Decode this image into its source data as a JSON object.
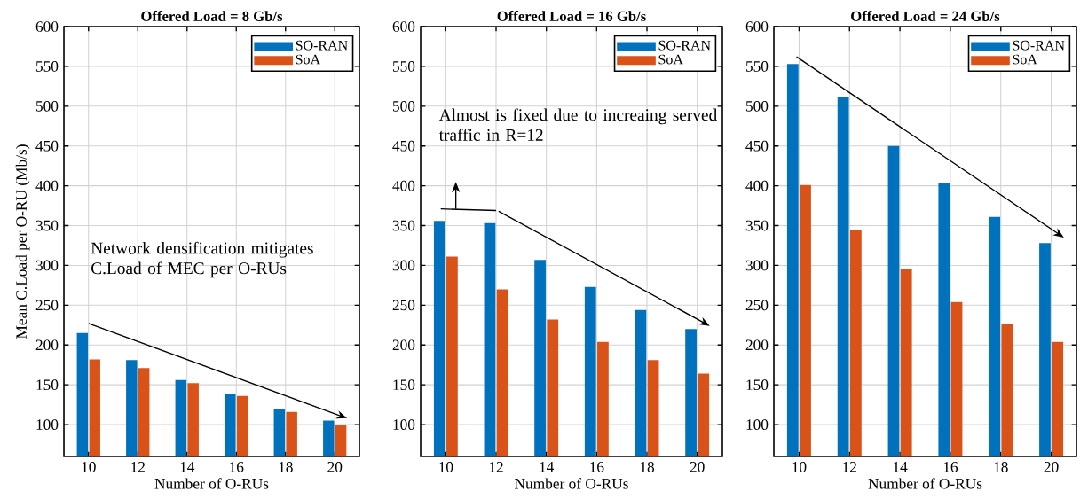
{
  "chart_data": [
    {
      "type": "bar",
      "title": "Offered Load = 8 Gb/s",
      "xlabel": "Number of O-RUs",
      "ylabel": "Mean C.Load per O-RU (Mb/s)",
      "x": [
        10,
        12,
        14,
        16,
        18,
        20
      ],
      "xlim": [
        9,
        21
      ],
      "xticks": [
        10,
        12,
        14,
        16,
        18,
        20
      ],
      "ylim": [
        60,
        600
      ],
      "yticks": [
        100,
        150,
        200,
        250,
        300,
        350,
        400,
        450,
        500,
        550,
        600
      ],
      "grid": true,
      "legend": "top right",
      "series": [
        {
          "name": "SO-RAN",
          "color": "#0072bd",
          "values": [
            215,
            181,
            156,
            139,
            119,
            105
          ]
        },
        {
          "name": "SoA",
          "color": "#d95319",
          "values": [
            182,
            171,
            152,
            136,
            116,
            100
          ]
        }
      ],
      "annotations": [
        "Network densification mitigates C.Load of MEC per O-RUs"
      ]
    },
    {
      "type": "bar",
      "title": "Offered Load = 16 Gb/s",
      "xlabel": "Number of O-RUs",
      "x": [
        10,
        12,
        14,
        16,
        18,
        20
      ],
      "xlim": [
        9,
        21
      ],
      "xticks": [
        10,
        12,
        14,
        16,
        18,
        20
      ],
      "ylim": [
        60,
        600
      ],
      "yticks": [
        100,
        150,
        200,
        250,
        300,
        350,
        400,
        450,
        500,
        550,
        600
      ],
      "grid": true,
      "legend": "top right",
      "series": [
        {
          "name": "SO-RAN",
          "color": "#0072bd",
          "values": [
            356,
            353,
            307,
            273,
            244,
            220
          ]
        },
        {
          "name": "SoA",
          "color": "#d95319",
          "values": [
            311,
            270,
            232,
            204,
            181,
            164
          ]
        }
      ],
      "annotations": [
        "Almost is fixed due to increaing served traffic in R=12"
      ]
    },
    {
      "type": "bar",
      "title": "Offered Load = 24 Gb/s",
      "xlabel": "Number of O-RUs",
      "x": [
        10,
        12,
        14,
        16,
        18,
        20
      ],
      "xlim": [
        9,
        21
      ],
      "xticks": [
        10,
        12,
        14,
        16,
        18,
        20
      ],
      "ylim": [
        60,
        600
      ],
      "yticks": [
        100,
        150,
        200,
        250,
        300,
        350,
        400,
        450,
        500,
        550,
        600
      ],
      "grid": true,
      "legend": "top right",
      "series": [
        {
          "name": "SO-RAN",
          "color": "#0072bd",
          "values": [
            553,
            511,
            450,
            404,
            361,
            328
          ]
        },
        {
          "name": "SoA",
          "color": "#d95319",
          "values": [
            401,
            345,
            296,
            254,
            226,
            204
          ]
        }
      ]
    }
  ]
}
